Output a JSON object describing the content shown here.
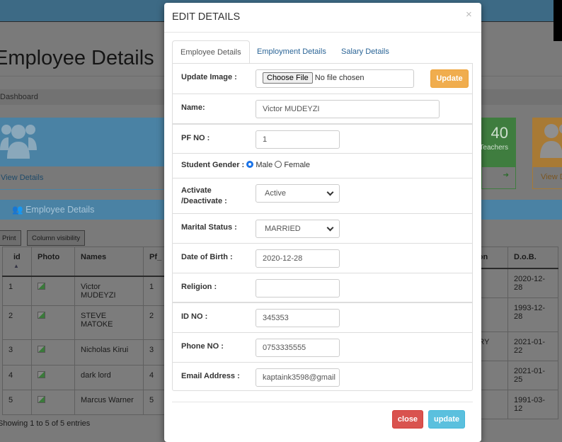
{
  "background": {
    "page_title": "Employee Details",
    "breadcrumb": "Dashboard",
    "card1_link": "View Details",
    "card2": {
      "count": "40",
      "label": "Teachers"
    },
    "card3_link": "View Details",
    "panel_title": "Employee Details",
    "buttons": {
      "print": "Print",
      "column_visibility": "Column visibility"
    },
    "table": {
      "headers": [
        "id",
        "Photo",
        "Names",
        "Pf_"
      ],
      "right_headers": [
        "tion",
        "D.o.B."
      ],
      "rows": [
        {
          "id": "1",
          "name": "Victor MUDEYZI",
          "pf": "1",
          "col_tion": "",
          "dob": "2020-12-28"
        },
        {
          "id": "2",
          "name": "STEVE MATOKE",
          "pf": "2",
          "col_tion": "",
          "dob": "1993-12-28"
        },
        {
          "id": "3",
          "name": "Nicholas Kirui",
          "pf": "3",
          "col_tion": "ARY",
          "dob": "2021-01-22"
        },
        {
          "id": "4",
          "name": "dark lord",
          "pf": "4",
          "col_tion": "",
          "dob": "2021-01-25"
        },
        {
          "id": "5",
          "name": "Marcus Warner",
          "pf": "5",
          "col_tion": "",
          "dob": "1991-03-12"
        }
      ]
    },
    "info": "Showing 1 to 5 of 5 entries"
  },
  "modal": {
    "title": "EDIT DETAILS",
    "close_symbol": "×",
    "tabs": [
      {
        "label": "Employee Details",
        "active": true
      },
      {
        "label": "Employment Details",
        "active": false
      },
      {
        "label": "Salary Details",
        "active": false
      }
    ],
    "form": {
      "update_image": {
        "label": "Update Image :",
        "choose_file": "Choose File",
        "no_file": "No file chosen",
        "button": "Update"
      },
      "name": {
        "label": "Name:",
        "value": "Victor MUDEYZI"
      },
      "pf_no": {
        "label": "PF NO :",
        "value": "1"
      },
      "gender": {
        "label": "Student Gender :",
        "options": [
          "Male",
          "Female"
        ],
        "selected": "Male"
      },
      "activate": {
        "label": "Activate /Deactivate :",
        "value": "Active"
      },
      "marital": {
        "label": "Marital Status :",
        "value": "MARRIED"
      },
      "dob": {
        "label": "Date of Birth :",
        "value": "2020-12-28"
      },
      "religion": {
        "label": "Religion :",
        "value": ""
      },
      "id_no": {
        "label": "ID NO :",
        "value": "345353"
      },
      "phone": {
        "label": "Phone NO :",
        "value": "0753335555"
      },
      "email": {
        "label": "Email Address :",
        "value": "kaptaink3598@gmail"
      }
    },
    "buttons": {
      "close": "close",
      "update": "update"
    }
  },
  "colors": {
    "update_image_button": "#f0ad4e",
    "close_button": "#d9534f",
    "update_button": "#5bc0de",
    "link": "#2a6496"
  }
}
